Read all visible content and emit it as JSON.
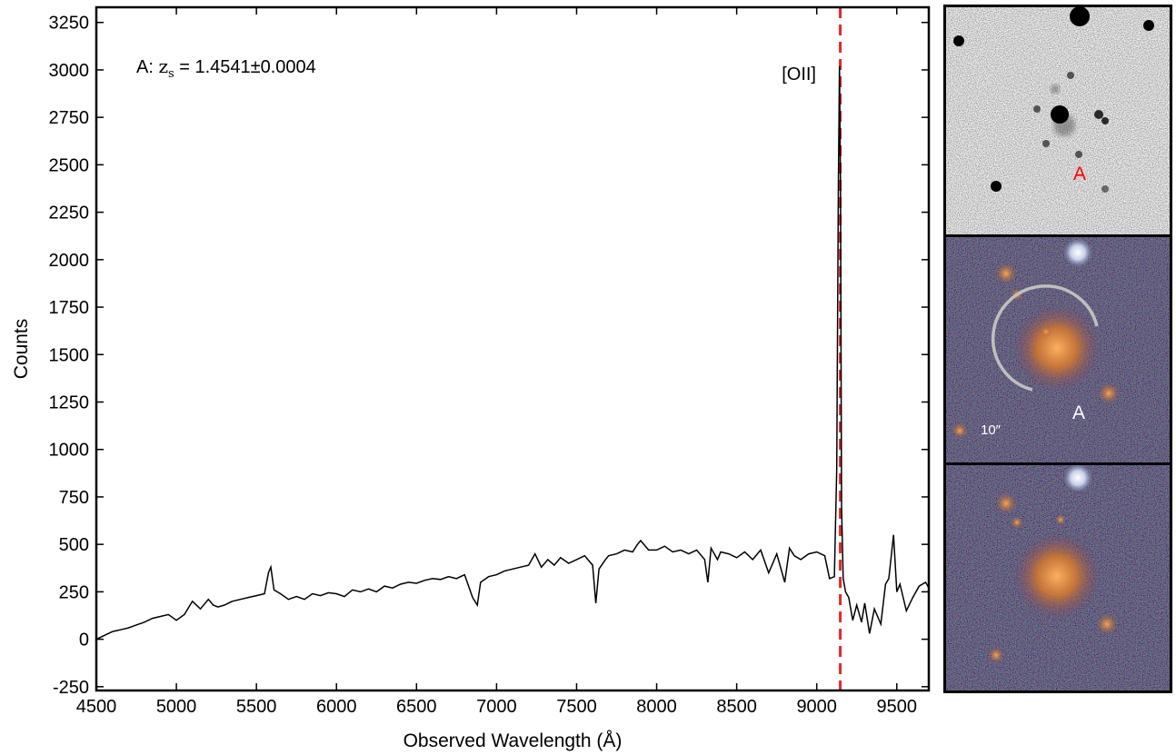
{
  "chart_data": {
    "type": "line",
    "xlabel": "Observed Wavelength (Å)",
    "ylabel": "Counts",
    "xlim": [
      4500,
      9700
    ],
    "ylim": [
      -270,
      3330
    ],
    "x_ticks": [
      "4500",
      "5000",
      "5500",
      "6000",
      "6500",
      "7000",
      "7500",
      "8000",
      "8500",
      "9000",
      "9500"
    ],
    "y_ticks": [
      "-250",
      "0",
      "250",
      "500",
      "750",
      "1000",
      "1250",
      "1500",
      "1750",
      "2000",
      "2250",
      "2500",
      "2750",
      "3000",
      "3250"
    ],
    "annotation_label": "A: ",
    "annotation_z": "z",
    "annotation_sub": "s",
    "annotation_value": " = 1.4541±0.0004",
    "line_label": "[OII]",
    "reference_line_x": 9147,
    "colors": {
      "spectrum": "#000000",
      "reference_line": "#e8262a"
    },
    "series": [
      {
        "x": [
          4500,
          4550,
          4600,
          4650,
          4700,
          4750,
          4800,
          4850,
          4900,
          4950,
          5000,
          5050,
          5100,
          5150,
          5200,
          5230,
          5260,
          5300,
          5350,
          5400,
          5450,
          5500,
          5550,
          5575,
          5590,
          5610,
          5650,
          5700,
          5750,
          5800,
          5850,
          5900,
          5950,
          6000,
          6050,
          6100,
          6150,
          6200,
          6250,
          6300,
          6350,
          6400,
          6450,
          6500,
          6550,
          6600,
          6650,
          6700,
          6750,
          6800,
          6850,
          6880,
          6900,
          6950,
          7000,
          7050,
          7100,
          7150,
          7200,
          7240,
          7280,
          7320,
          7360,
          7400,
          7450,
          7500,
          7550,
          7600,
          7620,
          7640,
          7680,
          7700,
          7750,
          7800,
          7850,
          7880,
          7900,
          7950,
          8000,
          8050,
          8100,
          8150,
          8200,
          8250,
          8300,
          8320,
          8340,
          8380,
          8400,
          8450,
          8500,
          8550,
          8600,
          8650,
          8700,
          8750,
          8800,
          8830,
          8860,
          8900,
          8950,
          9000,
          9050,
          9080,
          9110,
          9125,
          9135,
          9142,
          9148,
          9155,
          9165,
          9180,
          9200,
          9225,
          9250,
          9280,
          9300,
          9330,
          9360,
          9400,
          9430,
          9450,
          9480,
          9500,
          9520,
          9560,
          9600,
          9640,
          9680,
          9700
        ],
        "y": [
          0,
          20,
          40,
          50,
          60,
          75,
          90,
          110,
          120,
          130,
          100,
          130,
          200,
          160,
          210,
          180,
          170,
          180,
          200,
          210,
          220,
          230,
          240,
          350,
          380,
          260,
          240,
          210,
          225,
          210,
          240,
          230,
          245,
          240,
          225,
          260,
          250,
          265,
          250,
          280,
          270,
          290,
          300,
          295,
          310,
          320,
          315,
          330,
          320,
          340,
          220,
          180,
          300,
          330,
          340,
          360,
          370,
          380,
          390,
          450,
          380,
          420,
          390,
          430,
          400,
          420,
          440,
          390,
          190,
          370,
          420,
          440,
          450,
          470,
          460,
          500,
          520,
          470,
          470,
          490,
          460,
          470,
          450,
          470,
          420,
          300,
          480,
          420,
          460,
          450,
          430,
          460,
          420,
          470,
          350,
          450,
          300,
          480,
          440,
          420,
          450,
          460,
          440,
          320,
          330,
          900,
          2400,
          3020,
          2400,
          700,
          320,
          250,
          220,
          100,
          180,
          90,
          190,
          30,
          160,
          80,
          290,
          320,
          550,
          250,
          290,
          150,
          220,
          280,
          300,
          270
        ]
      }
    ]
  },
  "panels": [
    {
      "label": "A",
      "label_color": "#ff0000"
    },
    {
      "label": "A",
      "label_color": "#ffffff",
      "scale_text": "10″"
    },
    {}
  ]
}
